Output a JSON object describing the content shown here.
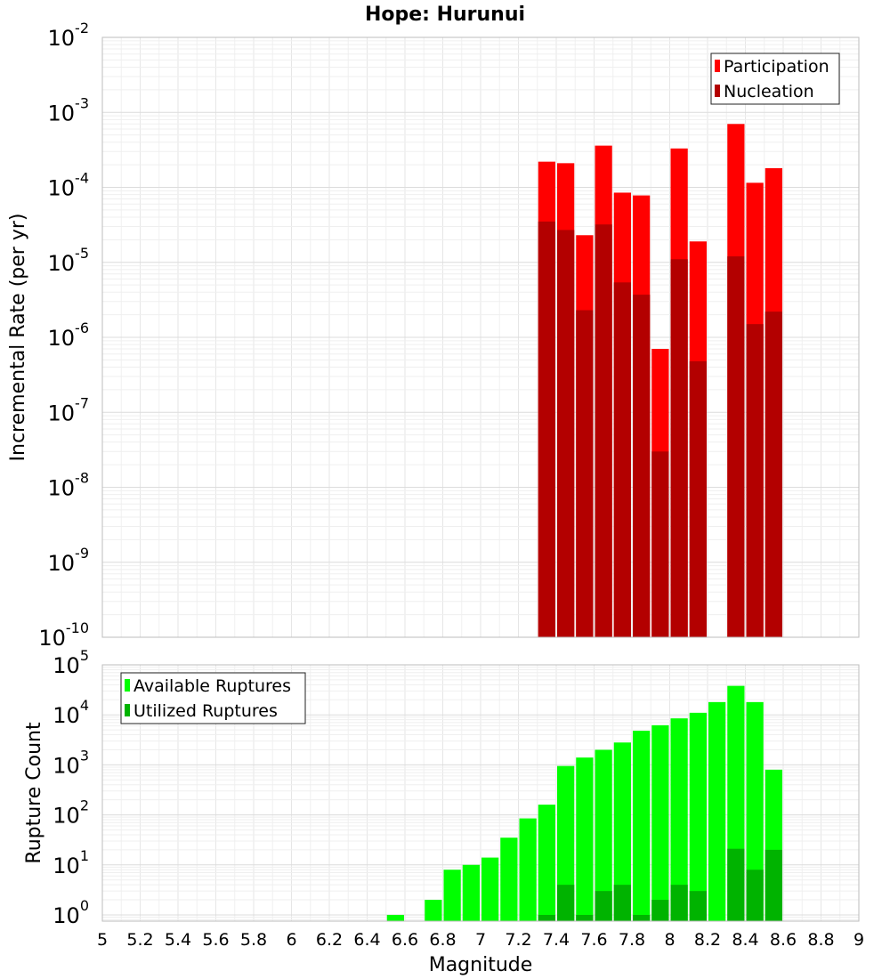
{
  "title": "Hope: Hurunui",
  "x_label": "Magnitude",
  "x_ticks": [
    "5",
    "5.2",
    "5.4",
    "5.6",
    "5.8",
    "6",
    "6.2",
    "6.4",
    "6.6",
    "6.8",
    "7",
    "7.2",
    "7.4",
    "7.6",
    "7.8",
    "8",
    "8.2",
    "8.4",
    "8.6",
    "8.8",
    "9"
  ],
  "colors": {
    "participation": "#ff0000",
    "nucleation": "#b30000",
    "available": "#00ff00",
    "utilized": "#00b300"
  },
  "chart_data": [
    {
      "type": "bar",
      "scale": "log",
      "ylabel": "Incremental Rate (per yr)",
      "ylim": [
        1e-10,
        0.01
      ],
      "xlim": [
        5,
        9
      ],
      "y_ticks": [
        {
          "base": "10",
          "exp": "-2"
        },
        {
          "base": "10",
          "exp": "-3"
        },
        {
          "base": "10",
          "exp": "-4"
        },
        {
          "base": "10",
          "exp": "-5"
        },
        {
          "base": "10",
          "exp": "-6"
        },
        {
          "base": "10",
          "exp": "-7"
        },
        {
          "base": "10",
          "exp": "-8"
        },
        {
          "base": "10",
          "exp": "-9"
        },
        {
          "base": "10",
          "exp": "-10"
        }
      ],
      "legend_position": "top-right",
      "x": [
        7.35,
        7.45,
        7.55,
        7.65,
        7.75,
        7.85,
        7.95,
        8.05,
        8.15,
        8.35,
        8.45,
        8.55
      ],
      "series": [
        {
          "name": "Participation",
          "values": [
            0.00022,
            0.00021,
            2.3e-05,
            0.00036,
            8.5e-05,
            7.8e-05,
            7e-07,
            0.00033,
            1.9e-05,
            0.0007,
            0.000115,
            0.00018
          ]
        },
        {
          "name": "Nucleation",
          "values": [
            3.5e-05,
            2.7e-05,
            2.3e-06,
            3.2e-05,
            5.4e-06,
            3.7e-06,
            3e-08,
            1.1e-05,
            4.8e-07,
            1.2e-05,
            1.5e-06,
            2.2e-06
          ]
        }
      ]
    },
    {
      "type": "bar",
      "scale": "log",
      "ylabel": "Rupture Count",
      "ylim": [
        0.75,
        100000
      ],
      "xlim": [
        5,
        9
      ],
      "y_ticks": [
        {
          "base": "10",
          "exp": "5"
        },
        {
          "base": "10",
          "exp": "4"
        },
        {
          "base": "10",
          "exp": "3"
        },
        {
          "base": "10",
          "exp": "2"
        },
        {
          "base": "10",
          "exp": "1"
        },
        {
          "base": "10",
          "exp": "0"
        }
      ],
      "legend_position": "top-left",
      "x": [
        6.55,
        6.75,
        6.85,
        6.95,
        7.05,
        7.15,
        7.25,
        7.35,
        7.45,
        7.55,
        7.65,
        7.75,
        7.85,
        7.95,
        8.05,
        8.15,
        8.25,
        8.35,
        8.45,
        8.55
      ],
      "series": [
        {
          "name": "Available Ruptures",
          "values": [
            1,
            2,
            8,
            10,
            14,
            35,
            85,
            160,
            950,
            1400,
            2000,
            2800,
            4800,
            6200,
            8500,
            11000,
            18000,
            38000,
            18000,
            800
          ]
        },
        {
          "name": "Utilized Ruptures",
          "values": [
            0,
            0,
            0,
            0,
            0,
            0,
            0,
            1,
            4,
            1,
            3,
            4,
            1,
            2,
            4,
            3,
            0,
            21,
            8,
            20
          ]
        }
      ]
    }
  ]
}
